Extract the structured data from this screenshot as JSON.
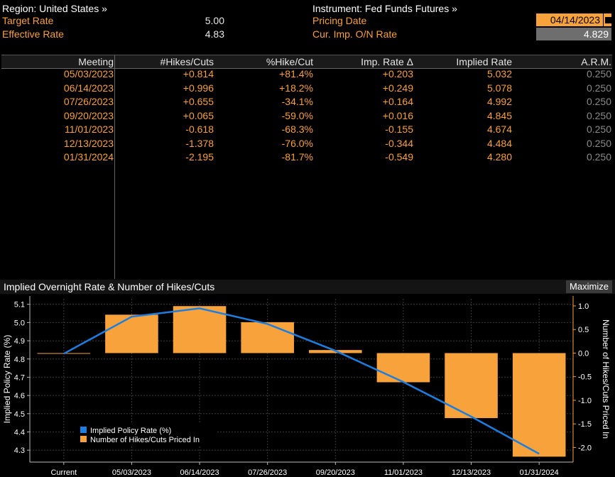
{
  "header": {
    "region_label": "Region: United States »",
    "target_rate_label": "Target Rate",
    "target_rate_value": "5.00",
    "effective_rate_label": "Effective Rate",
    "effective_rate_value": "4.83",
    "instrument_label": "Instrument: Fed Funds Futures »",
    "pricing_date_label": "Pricing Date",
    "pricing_date_value": "04/14/2023",
    "cur_imp_label": "Cur. Imp. O/N Rate",
    "cur_imp_value": "4.829"
  },
  "table": {
    "columns": [
      "Meeting",
      "#Hikes/Cuts",
      "%Hike/Cut",
      "Imp. Rate Δ",
      "Implied Rate",
      "A.R.M."
    ],
    "rows": [
      {
        "meeting": "05/03/2023",
        "hikes": "+0.814",
        "pct": "+81.4%",
        "delta": "+0.203",
        "implied": "5.032",
        "arm": "0.250"
      },
      {
        "meeting": "06/14/2023",
        "hikes": "+0.996",
        "pct": "+18.2%",
        "delta": "+0.249",
        "implied": "5.078",
        "arm": "0.250"
      },
      {
        "meeting": "07/26/2023",
        "hikes": "+0.655",
        "pct": "-34.1%",
        "delta": "+0.164",
        "implied": "4.992",
        "arm": "0.250"
      },
      {
        "meeting": "09/20/2023",
        "hikes": "+0.065",
        "pct": "-59.0%",
        "delta": "+0.016",
        "implied": "4.845",
        "arm": "0.250"
      },
      {
        "meeting": "11/01/2023",
        "hikes": "-0.618",
        "pct": "-68.3%",
        "delta": "-0.155",
        "implied": "4.674",
        "arm": "0.250"
      },
      {
        "meeting": "12/13/2023",
        "hikes": "-1.378",
        "pct": "-76.0%",
        "delta": "-0.344",
        "implied": "4.484",
        "arm": "0.250"
      },
      {
        "meeting": "01/31/2024",
        "hikes": "-2.195",
        "pct": "-81.7%",
        "delta": "-0.549",
        "implied": "4.280",
        "arm": "0.250"
      }
    ]
  },
  "chart_header": {
    "title": "Implied Overnight Rate & Number of Hikes/Cuts",
    "maximize_label": "Maximize"
  },
  "chart_data": {
    "type": "bar",
    "title": "Implied Overnight Rate & Number of Hikes/Cuts",
    "categories": [
      "Current",
      "05/03/2023",
      "06/14/2023",
      "07/26/2023",
      "09/20/2023",
      "11/01/2023",
      "12/13/2023",
      "01/31/2024"
    ],
    "ylabel": "Implied Policy Rate (%)",
    "y2label": "Number of Hikes/Cuts Priced In",
    "ylim": [
      4.25,
      5.13
    ],
    "y2lim": [
      -2.25,
      1.15
    ],
    "yticks": [
      4.3,
      4.4,
      4.5,
      4.6,
      4.7,
      4.8,
      4.9,
      5.0,
      5.1
    ],
    "ytick_labels": [
      "4.3",
      "4.4",
      "4.5",
      "4.6",
      "4.7",
      "4.8",
      "4.9",
      "5.0",
      "5.1"
    ],
    "y2ticks": [
      -2.0,
      -1.5,
      -1.0,
      -0.5,
      0.0,
      0.5,
      1.0
    ],
    "y2tick_labels": [
      "-2.0",
      "-1.5",
      "-1.0",
      "-0.5",
      "0.0",
      "0.5",
      "1.0"
    ],
    "grid": true,
    "legend_position": "bottom-left",
    "series": [
      {
        "name": "Implied Policy Rate (%)",
        "kind": "line",
        "axis": "left",
        "color": "#1e7ee0",
        "values": [
          4.829,
          5.032,
          5.078,
          4.992,
          4.845,
          4.674,
          4.484,
          4.28
        ]
      },
      {
        "name": "Number of Hikes/Cuts Priced In",
        "kind": "bar",
        "axis": "right",
        "color": "#f7a23b",
        "values": [
          0.0,
          0.814,
          0.996,
          0.655,
          0.065,
          -0.618,
          -1.378,
          -2.195
        ]
      }
    ]
  },
  "colors": {
    "accent": "#f7a23b",
    "line": "#1e7ee0",
    "background": "#000000"
  }
}
